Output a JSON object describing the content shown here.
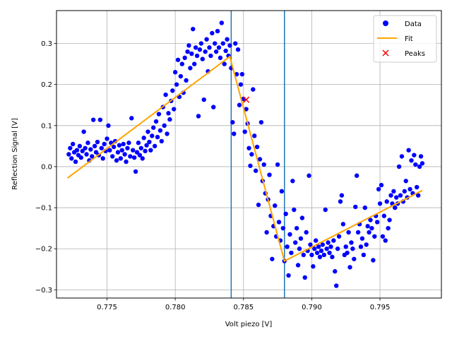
{
  "chart_data": {
    "type": "scatter",
    "xlabel": "Volt piezo [V]",
    "ylabel": "Reflection Signal [V]",
    "xlim": [
      0.7713,
      0.7995
    ],
    "ylim": [
      -0.32,
      0.38
    ],
    "xticks": [
      0.775,
      0.78,
      0.785,
      0.79,
      0.795
    ],
    "xtick_labels": [
      "0.775",
      "0.780",
      "0.785",
      "0.790",
      "0.795"
    ],
    "yticks": [
      -0.3,
      -0.2,
      -0.1,
      0.0,
      0.1,
      0.2,
      0.3
    ],
    "ytick_labels": [
      "−0.3",
      "−0.2",
      "−0.1",
      "0.0",
      "0.1",
      "0.2",
      "0.3"
    ],
    "grid": true,
    "legend_position": "top-right",
    "colors": {
      "data": "#0000ff",
      "fit": "#ffa500",
      "peaks": "#ff0000",
      "vlines": "#1f77b4"
    },
    "series": [
      {
        "name": "Data",
        "kind": "scatter",
        "points": [
          [
            0.7722,
            0.03
          ],
          [
            0.7723,
            0.045
          ],
          [
            0.7724,
            0.02
          ],
          [
            0.7725,
            0.055
          ],
          [
            0.7726,
            0.035
          ],
          [
            0.7727,
            0.012
          ],
          [
            0.7728,
            0.04
          ],
          [
            0.7729,
            0.028
          ],
          [
            0.773,
            0.05
          ],
          [
            0.7731,
            0.022
          ],
          [
            0.7732,
            0.038
          ],
          [
            0.7733,
            0.085
          ],
          [
            0.7734,
            0.045
          ],
          [
            0.7735,
            0.03
          ],
          [
            0.7736,
            0.058
          ],
          [
            0.7737,
            0.015
          ],
          [
            0.7738,
            0.042
          ],
          [
            0.7739,
            0.025
          ],
          [
            0.774,
            0.114
          ],
          [
            0.7741,
            0.05
          ],
          [
            0.7742,
            0.035
          ],
          [
            0.7743,
            0.06
          ],
          [
            0.7744,
            0.028
          ],
          [
            0.7745,
            0.114
          ],
          [
            0.7746,
            0.045
          ],
          [
            0.7747,
            0.02
          ],
          [
            0.7748,
            0.055
          ],
          [
            0.7749,
            0.038
          ],
          [
            0.775,
            0.068
          ],
          [
            0.7751,
            0.1
          ],
          [
            0.7752,
            0.04
          ],
          [
            0.7753,
            0.058
          ],
          [
            0.7754,
            0.025
          ],
          [
            0.7755,
            0.048
          ],
          [
            0.7756,
            0.062
          ],
          [
            0.7757,
            0.015
          ],
          [
            0.7758,
            0.035
          ],
          [
            0.7759,
            0.052
          ],
          [
            0.776,
            0.02
          ],
          [
            0.7761,
            0.04
          ],
          [
            0.7762,
            0.055
          ],
          [
            0.7763,
            0.03
          ],
          [
            0.7764,
            0.012
          ],
          [
            0.7765,
            0.045
          ],
          [
            0.7766,
            0.058
          ],
          [
            0.7767,
            0.025
          ],
          [
            0.7768,
            0.118
          ],
          [
            0.7769,
            0.04
          ],
          [
            0.777,
            0.022
          ],
          [
            0.7771,
            -0.012
          ],
          [
            0.7772,
            0.035
          ],
          [
            0.7773,
            0.058
          ],
          [
            0.7774,
            0.028
          ],
          [
            0.7775,
            0.045
          ],
          [
            0.7776,
            0.02
          ],
          [
            0.7777,
            0.07
          ],
          [
            0.7778,
            0.038
          ],
          [
            0.7779,
            0.052
          ],
          [
            0.778,
            0.085
          ],
          [
            0.7781,
            0.06
          ],
          [
            0.7782,
            0.04
          ],
          [
            0.7783,
            0.075
          ],
          [
            0.7784,
            0.095
          ],
          [
            0.7785,
            0.05
          ],
          [
            0.7786,
            0.11
          ],
          [
            0.7787,
            0.072
          ],
          [
            0.7788,
            0.128
          ],
          [
            0.7789,
            0.088
          ],
          [
            0.779,
            0.062
          ],
          [
            0.7791,
            0.145
          ],
          [
            0.7792,
            0.1
          ],
          [
            0.7793,
            0.175
          ],
          [
            0.7794,
            0.08
          ],
          [
            0.7795,
            0.13
          ],
          [
            0.7796,
            0.115
          ],
          [
            0.7797,
            0.16
          ],
          [
            0.7798,
            0.185
          ],
          [
            0.7799,
            0.14
          ],
          [
            0.78,
            0.23
          ],
          [
            0.7801,
            0.2
          ],
          [
            0.7802,
            0.26
          ],
          [
            0.7803,
            0.17
          ],
          [
            0.7804,
            0.22
          ],
          [
            0.7805,
            0.25
          ],
          [
            0.7806,
            0.18
          ],
          [
            0.7807,
            0.265
          ],
          [
            0.7808,
            0.21
          ],
          [
            0.7809,
            0.28
          ],
          [
            0.781,
            0.295
          ],
          [
            0.7811,
            0.24
          ],
          [
            0.7812,
            0.275
          ],
          [
            0.7813,
            0.335
          ],
          [
            0.7814,
            0.25
          ],
          [
            0.7815,
            0.29
          ],
          [
            0.7816,
            0.27
          ],
          [
            0.7817,
            0.123
          ],
          [
            0.7818,
            0.285
          ],
          [
            0.7819,
            0.3
          ],
          [
            0.782,
            0.262
          ],
          [
            0.7821,
            0.163
          ],
          [
            0.7822,
            0.28
          ],
          [
            0.7823,
            0.31
          ],
          [
            0.7824,
            0.232
          ],
          [
            0.7825,
            0.29
          ],
          [
            0.7826,
            0.27
          ],
          [
            0.7827,
            0.325
          ],
          [
            0.7828,
            0.145
          ],
          [
            0.7829,
            0.3
          ],
          [
            0.783,
            0.28
          ],
          [
            0.7831,
            0.33
          ],
          [
            0.7832,
            0.29
          ],
          [
            0.7833,
            0.265
          ],
          [
            0.7834,
            0.35
          ],
          [
            0.7835,
            0.3
          ],
          [
            0.7836,
            0.25
          ],
          [
            0.7837,
            0.282
          ],
          [
            0.7838,
            0.31
          ],
          [
            0.7839,
            0.27
          ],
          [
            0.784,
            0.295
          ],
          [
            0.7841,
            0.24
          ],
          [
            0.7842,
            0.108
          ],
          [
            0.7843,
            0.08
          ],
          [
            0.7844,
            0.3
          ],
          [
            0.7845,
            0.225
          ],
          [
            0.7846,
            0.285
          ],
          [
            0.7847,
            0.15
          ],
          [
            0.7848,
            0.2
          ],
          [
            0.7849,
            0.225
          ],
          [
            0.785,
            0.165
          ],
          [
            0.7851,
            0.085
          ],
          [
            0.7852,
            0.14
          ],
          [
            0.7853,
            0.105
          ],
          [
            0.7854,
            0.045
          ],
          [
            0.7855,
            0.002
          ],
          [
            0.7856,
            0.03
          ],
          [
            0.7857,
            0.188
          ],
          [
            0.7858,
            0.075
          ],
          [
            0.7859,
            -0.01
          ],
          [
            0.786,
            0.048
          ],
          [
            0.7861,
            -0.093
          ],
          [
            0.7862,
            0.018
          ],
          [
            0.7863,
            0.108
          ],
          [
            0.7864,
            -0.035
          ],
          [
            0.7865,
            0.005
          ],
          [
            0.7866,
            -0.065
          ],
          [
            0.7867,
            -0.16
          ],
          [
            0.7868,
            -0.08
          ],
          [
            0.7869,
            -0.02
          ],
          [
            0.787,
            -0.12
          ],
          [
            0.7871,
            -0.225
          ],
          [
            0.7872,
            -0.145
          ],
          [
            0.7873,
            -0.095
          ],
          [
            0.7874,
            -0.17
          ],
          [
            0.7875,
            0.005
          ],
          [
            0.7876,
            -0.135
          ],
          [
            0.7877,
            -0.18
          ],
          [
            0.7878,
            -0.06
          ],
          [
            0.7879,
            -0.15
          ],
          [
            0.788,
            -0.23
          ],
          [
            0.7881,
            -0.115
          ],
          [
            0.7882,
            -0.195
          ],
          [
            0.7883,
            -0.265
          ],
          [
            0.7884,
            -0.165
          ],
          [
            0.7885,
            -0.21
          ],
          [
            0.7886,
            -0.035
          ],
          [
            0.7887,
            -0.105
          ],
          [
            0.7888,
            -0.185
          ],
          [
            0.7889,
            -0.15
          ],
          [
            0.789,
            -0.24
          ],
          [
            0.7891,
            -0.2
          ],
          [
            0.7892,
            -0.175
          ],
          [
            0.7893,
            -0.125
          ],
          [
            0.7894,
            -0.215
          ],
          [
            0.7895,
            -0.27
          ],
          [
            0.7896,
            -0.16
          ],
          [
            0.7897,
            -0.205
          ],
          [
            0.7898,
            -0.022
          ],
          [
            0.7899,
            -0.19
          ],
          [
            0.79,
            -0.215
          ],
          [
            0.7901,
            -0.243
          ],
          [
            0.7902,
            -0.2
          ],
          [
            0.7903,
            -0.18
          ],
          [
            0.7904,
            -0.21
          ],
          [
            0.7905,
            -0.195
          ],
          [
            0.7906,
            -0.22
          ],
          [
            0.7907,
            -0.205
          ],
          [
            0.7908,
            -0.19
          ],
          [
            0.7909,
            -0.215
          ],
          [
            0.791,
            -0.105
          ],
          [
            0.7911,
            -0.2
          ],
          [
            0.7912,
            -0.185
          ],
          [
            0.7913,
            -0.21
          ],
          [
            0.7914,
            -0.195
          ],
          [
            0.7915,
            -0.22
          ],
          [
            0.7916,
            -0.18
          ],
          [
            0.7917,
            -0.255
          ],
          [
            0.7918,
            -0.29
          ],
          [
            0.7919,
            -0.2
          ],
          [
            0.792,
            -0.17
          ],
          [
            0.7921,
            -0.085
          ],
          [
            0.7922,
            -0.07
          ],
          [
            0.7923,
            -0.14
          ],
          [
            0.7924,
            -0.215
          ],
          [
            0.7925,
            -0.195
          ],
          [
            0.7926,
            -0.21
          ],
          [
            0.7927,
            -0.16
          ],
          [
            0.7928,
            -0.245
          ],
          [
            0.7929,
            -0.185
          ],
          [
            0.793,
            -0.2
          ],
          [
            0.7931,
            -0.225
          ],
          [
            0.7932,
            -0.098
          ],
          [
            0.7933,
            -0.022
          ],
          [
            0.7934,
            -0.16
          ],
          [
            0.7935,
            -0.14
          ],
          [
            0.7936,
            -0.195
          ],
          [
            0.7937,
            -0.175
          ],
          [
            0.7938,
            -0.215
          ],
          [
            0.7939,
            -0.1
          ],
          [
            0.794,
            -0.19
          ],
          [
            0.7941,
            -0.145
          ],
          [
            0.7942,
            -0.16
          ],
          [
            0.7943,
            -0.13
          ],
          [
            0.7944,
            -0.15
          ],
          [
            0.7945,
            -0.228
          ],
          [
            0.7946,
            -0.17
          ],
          [
            0.7947,
            -0.12
          ],
          [
            0.7948,
            -0.135
          ],
          [
            0.7949,
            -0.055
          ],
          [
            0.795,
            -0.09
          ],
          [
            0.7951,
            -0.045
          ],
          [
            0.7952,
            -0.17
          ],
          [
            0.7953,
            -0.12
          ],
          [
            0.7954,
            -0.18
          ],
          [
            0.7955,
            -0.085
          ],
          [
            0.7956,
            -0.15
          ],
          [
            0.7957,
            -0.13
          ],
          [
            0.7958,
            -0.07
          ],
          [
            0.7959,
            -0.09
          ],
          [
            0.796,
            -0.06
          ],
          [
            0.7961,
            -0.1
          ],
          [
            0.7962,
            -0.075
          ],
          [
            0.7963,
            -0.09
          ],
          [
            0.7964,
            0.0
          ],
          [
            0.7965,
            -0.07
          ],
          [
            0.7966,
            0.025
          ],
          [
            0.7967,
            -0.085
          ],
          [
            0.7968,
            -0.06
          ],
          [
            0.7969,
            -0.035
          ],
          [
            0.797,
            -0.075
          ],
          [
            0.7971,
            0.04
          ],
          [
            0.7972,
            -0.055
          ],
          [
            0.7973,
            0.015
          ],
          [
            0.7974,
            -0.065
          ],
          [
            0.7975,
            0.028
          ],
          [
            0.7976,
            0.005
          ],
          [
            0.7977,
            -0.05
          ],
          [
            0.7978,
            -0.07
          ],
          [
            0.7979,
            0.0
          ],
          [
            0.798,
            0.025
          ],
          [
            0.7981,
            0.008
          ]
        ]
      },
      {
        "name": "Fit",
        "kind": "line",
        "points": [
          [
            0.7721,
            -0.028
          ],
          [
            0.784,
            0.268
          ],
          [
            0.788,
            -0.23
          ],
          [
            0.7981,
            -0.058
          ]
        ]
      },
      {
        "name": "Peaks",
        "kind": "marker",
        "points": [
          [
            0.7852,
            0.163
          ]
        ]
      }
    ],
    "vlines": [
      0.7841,
      0.788
    ]
  }
}
